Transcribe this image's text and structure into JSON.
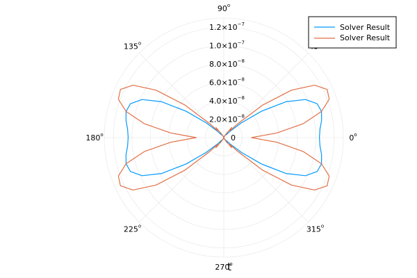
{
  "chart_data": {
    "type": "line",
    "subtype": "polar",
    "xlabel": "t",
    "grid": true,
    "legend_position": "top-right",
    "angle_ticks_deg": [
      0,
      45,
      90,
      135,
      180,
      225,
      270,
      315
    ],
    "angle_tick_labels": [
      {
        "base": "0",
        "sup": "o"
      },
      {
        "base": "45",
        "sup": "o"
      },
      {
        "base": "90",
        "sup": "o"
      },
      {
        "base": "135",
        "sup": "o"
      },
      {
        "base": "180",
        "sup": "o"
      },
      {
        "base": "225",
        "sup": "o"
      },
      {
        "base": "270",
        "sup": "o"
      },
      {
        "base": "315",
        "sup": "o"
      }
    ],
    "r_max": 1.3e-07,
    "r_ticks": [
      0,
      2e-08,
      4e-08,
      6e-08,
      8e-08,
      1e-07,
      1.2e-07
    ],
    "r_tick_labels": [
      {
        "base": "0",
        "sup": ""
      },
      {
        "base": "2.0×10",
        "sup": "−8"
      },
      {
        "base": "4.0×10",
        "sup": "−8"
      },
      {
        "base": "6.0×10",
        "sup": "−8"
      },
      {
        "base": "8.0×10",
        "sup": "−8"
      },
      {
        "base": "1.0×10",
        "sup": "−7"
      },
      {
        "base": "1.2×10",
        "sup": "−7"
      }
    ],
    "series": [
      {
        "name": "Solver Result",
        "color": "#009AFA",
        "points": [
          [
            0,
            1.04e-07
          ],
          [
            5,
            1.05e-07
          ],
          [
            10,
            1.08e-07
          ],
          [
            15,
            1.1e-07
          ],
          [
            20,
            1.08e-07
          ],
          [
            25,
            9.8e-08
          ],
          [
            30,
            7.8e-08
          ],
          [
            35,
            5e-08
          ],
          [
            40,
            2.5e-08
          ],
          [
            45,
            1e-08
          ],
          [
            50,
            4e-09
          ],
          [
            55,
            7e-09
          ],
          [
            60,
            3e-09
          ],
          [
            70,
            1e-09
          ],
          [
            90,
            0
          ],
          [
            110,
            1e-09
          ],
          [
            120,
            3e-09
          ],
          [
            125,
            7e-09
          ],
          [
            130,
            4e-09
          ],
          [
            135,
            1e-08
          ],
          [
            140,
            2.5e-08
          ],
          [
            145,
            5e-08
          ],
          [
            150,
            7.8e-08
          ],
          [
            155,
            9.8e-08
          ],
          [
            160,
            1.08e-07
          ],
          [
            165,
            1.1e-07
          ],
          [
            170,
            1.08e-07
          ],
          [
            175,
            1.05e-07
          ],
          [
            180,
            1.04e-07
          ],
          [
            185,
            1.05e-07
          ],
          [
            190,
            1.08e-07
          ],
          [
            195,
            1.1e-07
          ],
          [
            200,
            1.08e-07
          ],
          [
            205,
            9.8e-08
          ],
          [
            210,
            7.8e-08
          ],
          [
            215,
            5e-08
          ],
          [
            220,
            2.5e-08
          ],
          [
            225,
            1e-08
          ],
          [
            230,
            4e-09
          ],
          [
            235,
            7e-09
          ],
          [
            240,
            3e-09
          ],
          [
            250,
            1e-09
          ],
          [
            270,
            0
          ],
          [
            290,
            1e-09
          ],
          [
            300,
            3e-09
          ],
          [
            305,
            7e-09
          ],
          [
            310,
            4e-09
          ],
          [
            315,
            1e-08
          ],
          [
            320,
            2.5e-08
          ],
          [
            325,
            5e-08
          ],
          [
            330,
            7.8e-08
          ],
          [
            335,
            9.8e-08
          ],
          [
            340,
            1.08e-07
          ],
          [
            345,
            1.1e-07
          ],
          [
            350,
            1.08e-07
          ],
          [
            355,
            1.05e-07
          ],
          [
            360,
            1.04e-07
          ]
        ]
      },
      {
        "name": "Solver Result",
        "color": "#E26F46",
        "points": [
          [
            0,
            3e-08
          ],
          [
            5,
            5.8e-08
          ],
          [
            10,
            8.8e-08
          ],
          [
            15,
            1.1e-07
          ],
          [
            20,
            1.22e-07
          ],
          [
            25,
            1.24e-07
          ],
          [
            30,
            1.14e-07
          ],
          [
            35,
            9e-08
          ],
          [
            40,
            5.5e-08
          ],
          [
            45,
            2e-08
          ],
          [
            48,
            1e-08
          ],
          [
            52,
            1.4e-08
          ],
          [
            56,
            6e-09
          ],
          [
            65,
            2e-09
          ],
          [
            90,
            0
          ],
          [
            115,
            2e-09
          ],
          [
            124,
            6e-09
          ],
          [
            128,
            1.4e-08
          ],
          [
            132,
            1e-08
          ],
          [
            135,
            2e-08
          ],
          [
            140,
            5.5e-08
          ],
          [
            145,
            9e-08
          ],
          [
            150,
            1.14e-07
          ],
          [
            155,
            1.24e-07
          ],
          [
            160,
            1.22e-07
          ],
          [
            165,
            1.1e-07
          ],
          [
            170,
            8.8e-08
          ],
          [
            175,
            5.8e-08
          ],
          [
            180,
            3e-08
          ],
          [
            185,
            5.8e-08
          ],
          [
            190,
            8.8e-08
          ],
          [
            195,
            1.1e-07
          ],
          [
            200,
            1.22e-07
          ],
          [
            205,
            1.24e-07
          ],
          [
            210,
            1.14e-07
          ],
          [
            215,
            9e-08
          ],
          [
            220,
            5.5e-08
          ],
          [
            225,
            2e-08
          ],
          [
            228,
            1e-08
          ],
          [
            232,
            1.4e-08
          ],
          [
            236,
            6e-09
          ],
          [
            245,
            2e-09
          ],
          [
            270,
            0
          ],
          [
            295,
            2e-09
          ],
          [
            304,
            6e-09
          ],
          [
            308,
            1.4e-08
          ],
          [
            312,
            1e-08
          ],
          [
            315,
            2e-08
          ],
          [
            320,
            5.5e-08
          ],
          [
            325,
            9e-08
          ],
          [
            330,
            1.14e-07
          ],
          [
            335,
            1.24e-07
          ],
          [
            340,
            1.22e-07
          ],
          [
            345,
            1.1e-07
          ],
          [
            350,
            8.8e-08
          ],
          [
            355,
            5.8e-08
          ],
          [
            360,
            3e-08
          ]
        ]
      }
    ]
  }
}
